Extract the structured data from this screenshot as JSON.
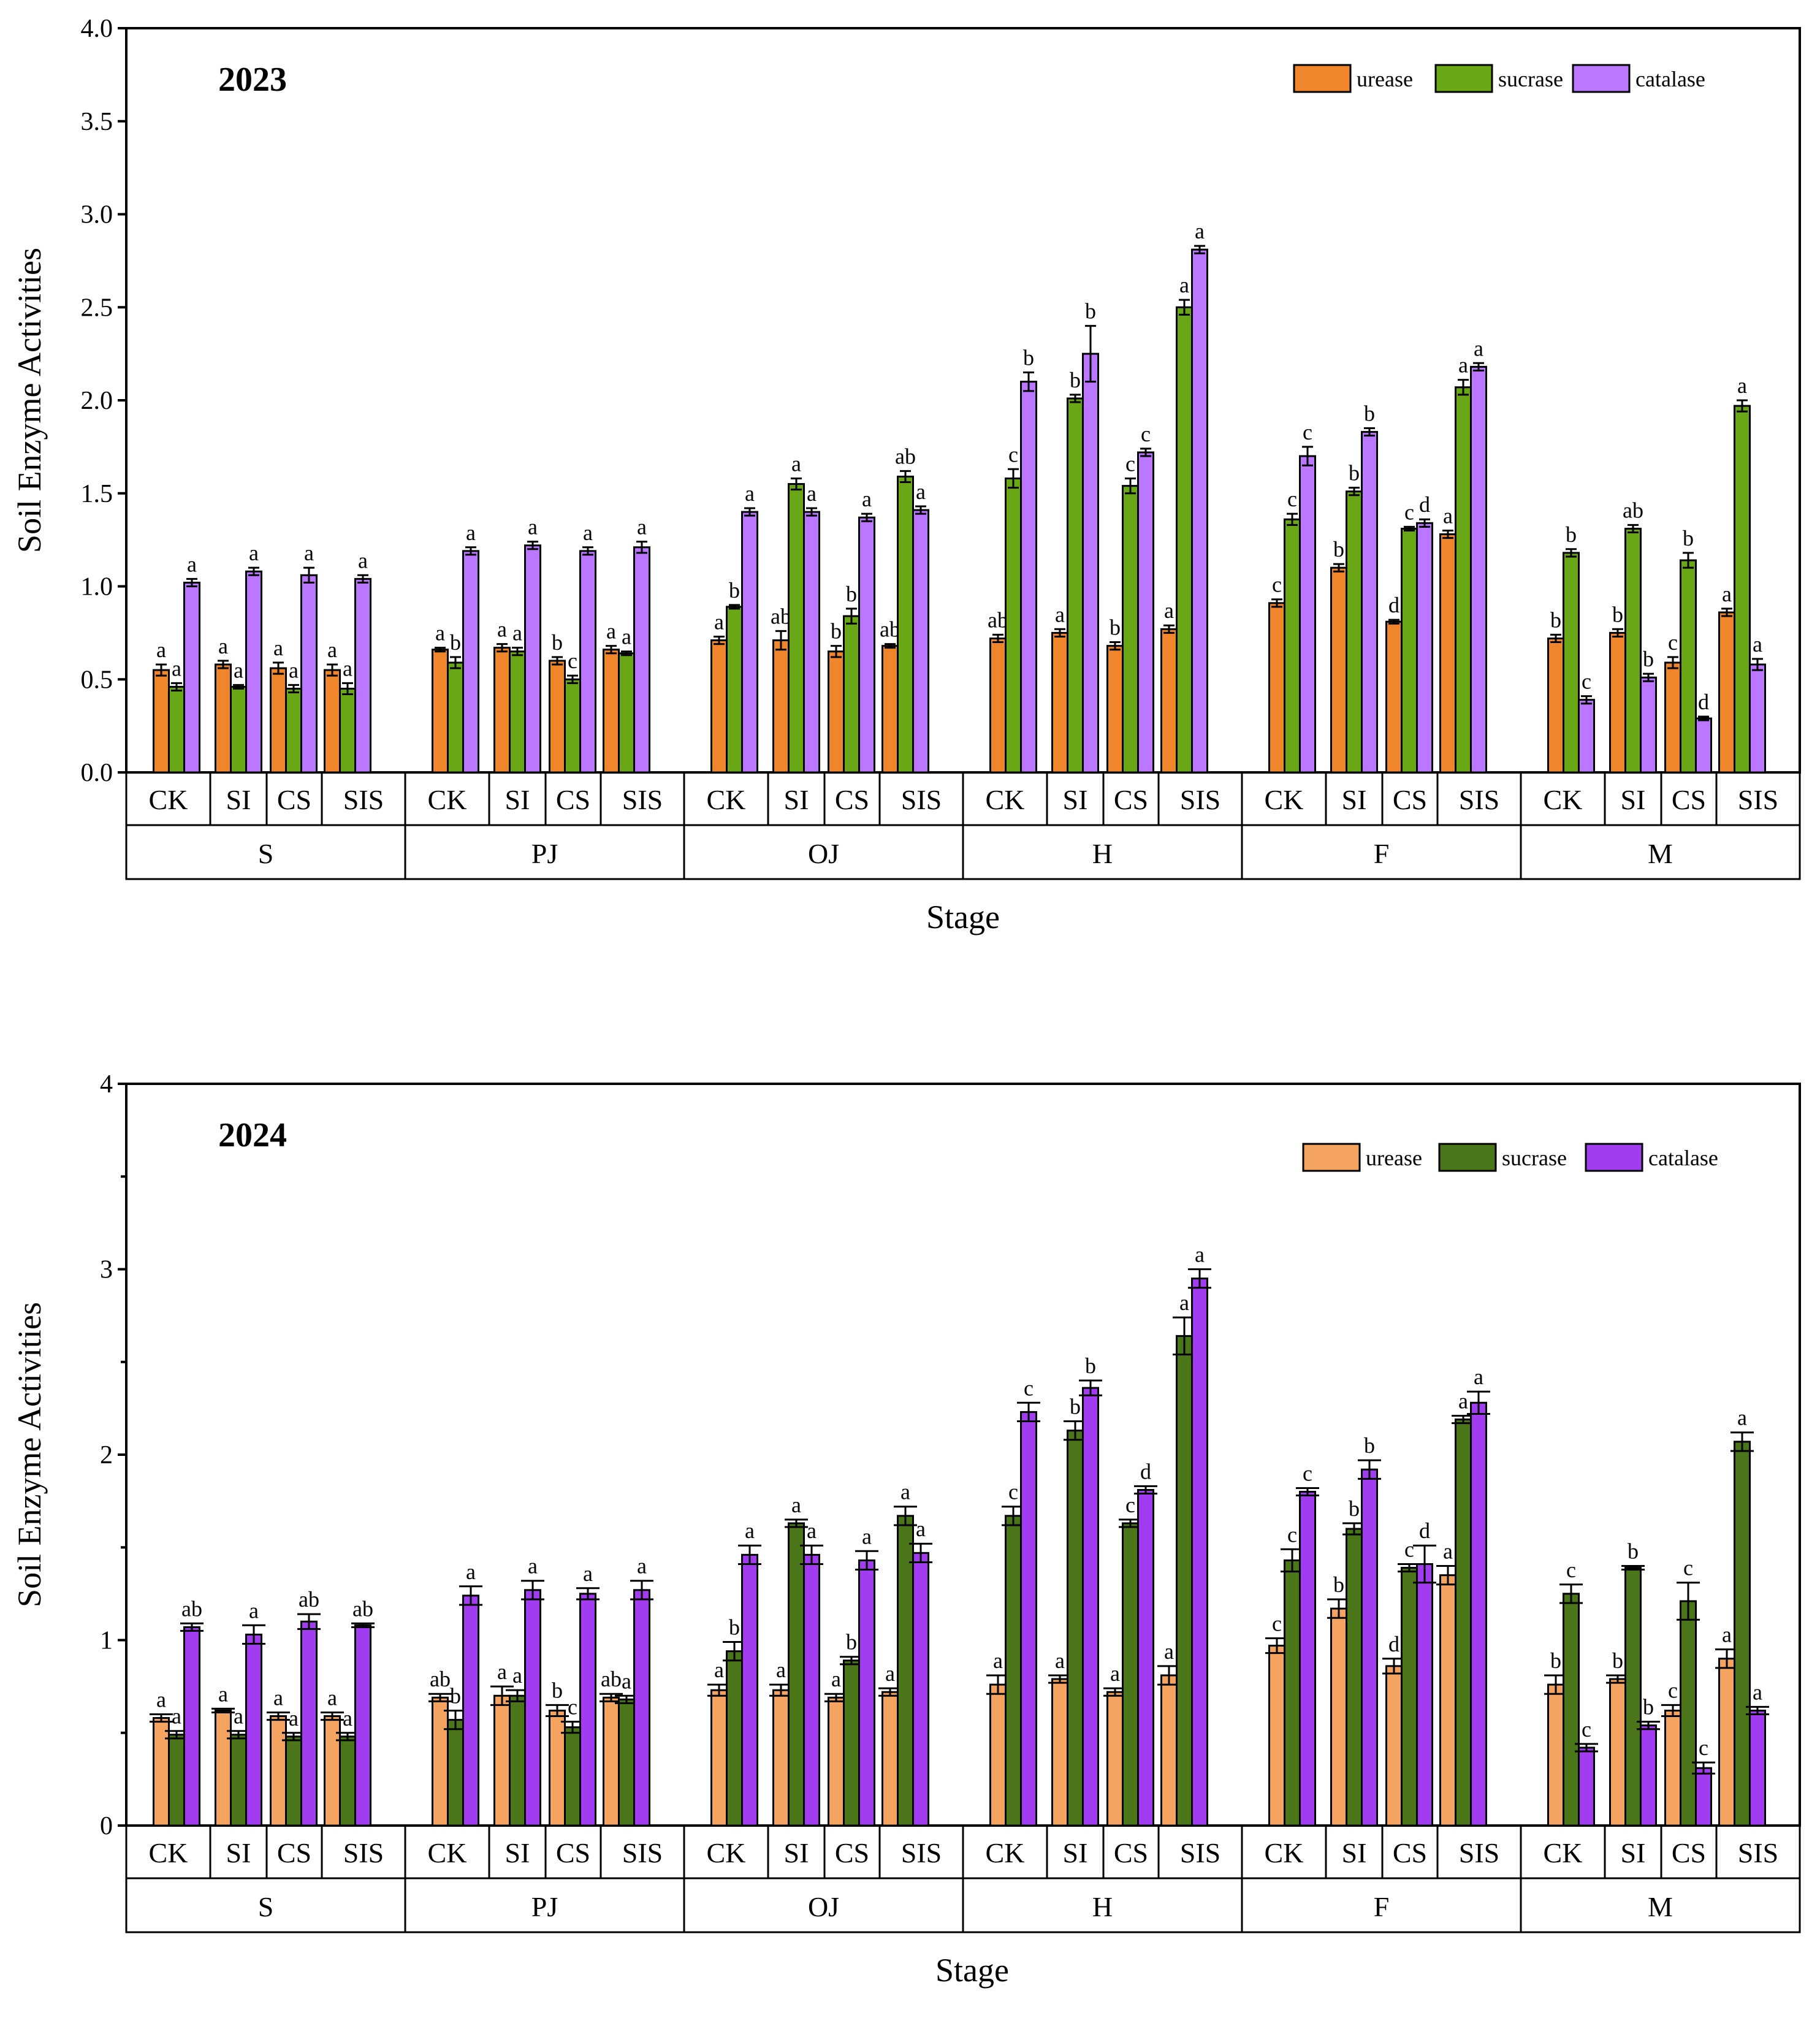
{
  "chart_data": [
    {
      "type": "bar",
      "title": "2023",
      "xlabel": "Stage",
      "ylabel": "Soil Enzyme Activities",
      "ylim": [
        0,
        4
      ],
      "yticks": [
        0,
        0.5,
        1,
        1.5,
        2,
        2.5,
        3,
        3.5,
        4
      ],
      "ytick_decimals": 1,
      "stages": [
        "S",
        "PJ",
        "OJ",
        "H",
        "F",
        "M"
      ],
      "treatments": [
        "CK",
        "SI",
        "CS",
        "SIS"
      ],
      "legend_position": "top-right",
      "series": [
        {
          "name": "urease",
          "color": "#F0862B",
          "values": [
            [
              0.55,
              0.58,
              0.56,
              0.55
            ],
            [
              0.66,
              0.67,
              0.6,
              0.66
            ],
            [
              0.71,
              0.71,
              0.65,
              0.68
            ],
            [
              0.72,
              0.75,
              0.68,
              0.77
            ],
            [
              0.91,
              1.1,
              0.81,
              1.28
            ],
            [
              0.72,
              0.75,
              0.59,
              0.86
            ]
          ],
          "errors": [
            [
              0.03,
              0.02,
              0.03,
              0.03
            ],
            [
              0.01,
              0.02,
              0.02,
              0.02
            ],
            [
              0.02,
              0.05,
              0.03,
              0.01
            ],
            [
              0.02,
              0.02,
              0.02,
              0.02
            ],
            [
              0.02,
              0.02,
              0.01,
              0.02
            ],
            [
              0.02,
              0.02,
              0.03,
              0.02
            ]
          ],
          "letters": [
            [
              "a",
              "a",
              "a",
              "a"
            ],
            [
              "a",
              "a",
              "b",
              "a"
            ],
            [
              "a",
              "ab",
              "b",
              "ab"
            ],
            [
              "ab",
              "a",
              "b",
              "a"
            ],
            [
              "c",
              "b",
              "d",
              "a"
            ],
            [
              "b",
              "b",
              "c",
              "a"
            ]
          ]
        },
        {
          "name": "sucrase",
          "color": "#6AA716",
          "values": [
            [
              0.46,
              0.46,
              0.45,
              0.45
            ],
            [
              0.59,
              0.65,
              0.5,
              0.64
            ],
            [
              0.89,
              1.55,
              0.84,
              1.59
            ],
            [
              1.58,
              2.01,
              1.54,
              2.5
            ],
            [
              1.36,
              1.51,
              1.31,
              2.07
            ],
            [
              1.18,
              1.31,
              1.14,
              1.97
            ]
          ],
          "errors": [
            [
              0.02,
              0.01,
              0.02,
              0.03
            ],
            [
              0.03,
              0.02,
              0.02,
              0.01
            ],
            [
              0.01,
              0.03,
              0.04,
              0.03
            ],
            [
              0.05,
              0.02,
              0.04,
              0.04
            ],
            [
              0.03,
              0.02,
              0.01,
              0.04
            ],
            [
              0.02,
              0.02,
              0.04,
              0.03
            ]
          ],
          "letters": [
            [
              "a",
              "a",
              "a",
              "a"
            ],
            [
              "b",
              "a",
              "c",
              "a"
            ],
            [
              "b",
              "a",
              "b",
              "ab"
            ],
            [
              "c",
              "b",
              "c",
              "a"
            ],
            [
              "c",
              "b",
              "c",
              "a"
            ],
            [
              "b",
              "ab",
              "b",
              "a"
            ]
          ]
        },
        {
          "name": "catalase",
          "color": "#BB77FF",
          "values": [
            [
              1.02,
              1.08,
              1.06,
              1.04
            ],
            [
              1.19,
              1.22,
              1.19,
              1.21
            ],
            [
              1.4,
              1.4,
              1.37,
              1.41
            ],
            [
              2.1,
              2.25,
              1.72,
              2.81
            ],
            [
              1.7,
              1.83,
              1.34,
              2.18
            ],
            [
              0.39,
              0.51,
              0.29,
              0.58
            ]
          ],
          "errors": [
            [
              0.02,
              0.02,
              0.04,
              0.02
            ],
            [
              0.02,
              0.02,
              0.02,
              0.03
            ],
            [
              0.02,
              0.02,
              0.02,
              0.02
            ],
            [
              0.05,
              0.15,
              0.02,
              0.02
            ],
            [
              0.05,
              0.02,
              0.02,
              0.02
            ],
            [
              0.02,
              0.02,
              0.01,
              0.03
            ]
          ],
          "letters": [
            [
              "a",
              "a",
              "a",
              "a"
            ],
            [
              "a",
              "a",
              "a",
              "a"
            ],
            [
              "a",
              "a",
              "a",
              "a"
            ],
            [
              "b",
              "b",
              "c",
              "a"
            ],
            [
              "c",
              "b",
              "d",
              "a"
            ],
            [
              "c",
              "b",
              "d",
              "a"
            ]
          ]
        }
      ]
    },
    {
      "type": "bar",
      "title": "2024",
      "xlabel": "Stage",
      "ylabel": "Soil Enzyme Activities",
      "ylim": [
        0,
        4
      ],
      "yticks": [
        0,
        1,
        2,
        3,
        4
      ],
      "minor_yticks": [
        0.5,
        1.5,
        2.5,
        3.5
      ],
      "ytick_decimals": 0,
      "stages": [
        "S",
        "PJ",
        "OJ",
        "H",
        "F",
        "M"
      ],
      "treatments": [
        "CK",
        "SI",
        "CS",
        "SIS"
      ],
      "legend_position": "top-right",
      "series": [
        {
          "name": "urease",
          "color": "#F4A460",
          "values": [
            [
              0.58,
              0.62,
              0.59,
              0.59
            ],
            [
              0.69,
              0.7,
              0.62,
              0.69
            ],
            [
              0.73,
              0.73,
              0.69,
              0.72
            ],
            [
              0.76,
              0.79,
              0.72,
              0.81
            ],
            [
              0.97,
              1.17,
              0.86,
              1.35
            ],
            [
              0.76,
              0.79,
              0.62,
              0.9
            ]
          ],
          "errors": [
            [
              0.02,
              0.01,
              0.02,
              0.02
            ],
            [
              0.02,
              0.05,
              0.03,
              0.02
            ],
            [
              0.03,
              0.03,
              0.02,
              0.02
            ],
            [
              0.05,
              0.02,
              0.02,
              0.05
            ],
            [
              0.04,
              0.05,
              0.04,
              0.05
            ],
            [
              0.05,
              0.02,
              0.03,
              0.05
            ]
          ],
          "letters": [
            [
              "a",
              "a",
              "a",
              "a"
            ],
            [
              "ab",
              "a",
              "b",
              "ab"
            ],
            [
              "a",
              "a",
              "a",
              "a"
            ],
            [
              "a",
              "a",
              "a",
              "a"
            ],
            [
              "c",
              "b",
              "d",
              "a"
            ],
            [
              "b",
              "b",
              "c",
              "a"
            ]
          ]
        },
        {
          "name": "sucrase",
          "color": "#4A7519",
          "values": [
            [
              0.49,
              0.49,
              0.48,
              0.48
            ],
            [
              0.57,
              0.7,
              0.53,
              0.68
            ],
            [
              0.94,
              1.63,
              0.89,
              1.67
            ],
            [
              1.67,
              2.13,
              1.63,
              2.64
            ],
            [
              1.43,
              1.6,
              1.39,
              2.19
            ],
            [
              1.25,
              1.39,
              1.21,
              2.07
            ]
          ],
          "errors": [
            [
              0.02,
              0.02,
              0.02,
              0.02
            ],
            [
              0.05,
              0.03,
              0.03,
              0.02
            ],
            [
              0.05,
              0.02,
              0.02,
              0.05
            ],
            [
              0.05,
              0.05,
              0.02,
              0.1
            ],
            [
              0.06,
              0.03,
              0.02,
              0.02
            ],
            [
              0.05,
              0.01,
              0.1,
              0.05
            ]
          ],
          "letters": [
            [
              "a",
              "a",
              "a",
              "a"
            ],
            [
              "b",
              "a",
              "c",
              "a"
            ],
            [
              "b",
              "a",
              "b",
              "a"
            ],
            [
              "c",
              "b",
              "c",
              "a"
            ],
            [
              "c",
              "b",
              "c",
              "a"
            ],
            [
              "c",
              "b",
              "c",
              "a"
            ]
          ]
        },
        {
          "name": "catalase",
          "color": "#A23CF0",
          "values": [
            [
              1.07,
              1.03,
              1.1,
              1.08
            ],
            [
              1.24,
              1.27,
              1.25,
              1.27
            ],
            [
              1.46,
              1.46,
              1.43,
              1.47
            ],
            [
              2.23,
              2.36,
              1.81,
              2.95
            ],
            [
              1.8,
              1.92,
              1.41,
              2.28
            ],
            [
              0.42,
              0.54,
              0.31,
              0.62
            ]
          ],
          "errors": [
            [
              0.02,
              0.05,
              0.04,
              0.01
            ],
            [
              0.05,
              0.05,
              0.03,
              0.05
            ],
            [
              0.05,
              0.05,
              0.05,
              0.05
            ],
            [
              0.05,
              0.04,
              0.02,
              0.05
            ],
            [
              0.02,
              0.05,
              0.1,
              0.06
            ],
            [
              0.02,
              0.02,
              0.03,
              0.02
            ]
          ],
          "letters": [
            [
              "ab",
              "a",
              "ab",
              "ab"
            ],
            [
              "a",
              "a",
              "a",
              "a"
            ],
            [
              "a",
              "a",
              "a",
              "a"
            ],
            [
              "c",
              "b",
              "d",
              "a"
            ],
            [
              "c",
              "b",
              "d",
              "a"
            ],
            [
              "c",
              "b",
              "c",
              "a"
            ]
          ]
        }
      ]
    }
  ]
}
